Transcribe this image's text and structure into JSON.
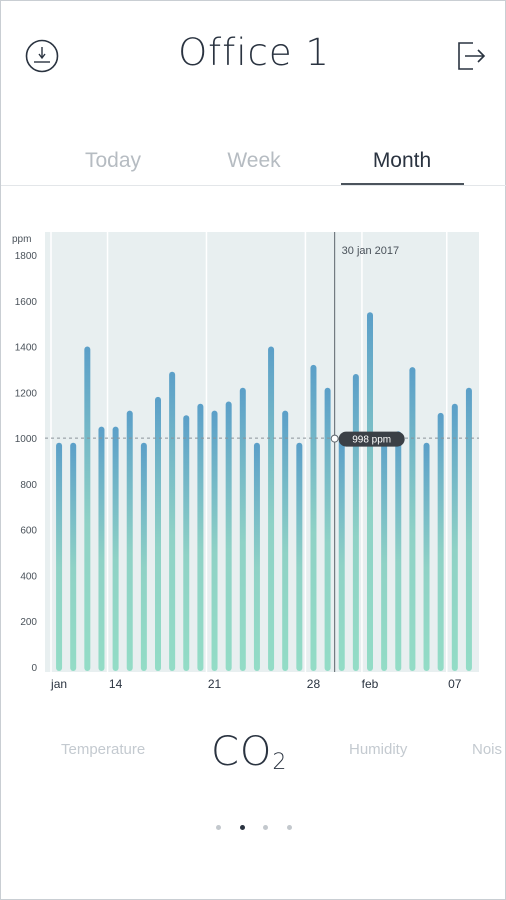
{
  "header": {
    "title": "Office 1",
    "left_icon": "gauge-icon",
    "right_icon": "logout-icon"
  },
  "tabs": [
    {
      "label": "Today",
      "active": false
    },
    {
      "label": "Week",
      "active": false
    },
    {
      "label": "Month",
      "active": true
    }
  ],
  "metrics": {
    "left": "Temperature",
    "current_main": "CO",
    "current_sub": "2",
    "right": "Humidity",
    "far_right": "Nois"
  },
  "pager": {
    "count": 4,
    "active_index": 1
  },
  "colors": {
    "bar_top": "#5b9fc8",
    "bar_bottom": "#93dcc6",
    "chart_bg": "#e8eff0",
    "text_dark": "#2a3340"
  },
  "chart_data": {
    "type": "bar",
    "ylabel": "ppm",
    "ylim": [
      0,
      1800
    ],
    "yticks": [
      0,
      200,
      400,
      600,
      800,
      1000,
      1200,
      1400,
      1600,
      1800
    ],
    "threshold": 1000,
    "x_tick_labels": [
      "jan",
      "14",
      "21",
      "28",
      "feb",
      "07"
    ],
    "x_tick_indices": [
      0,
      4,
      11,
      18,
      22,
      28
    ],
    "values": [
      980,
      980,
      1400,
      1050,
      1050,
      1120,
      980,
      1180,
      1290,
      1100,
      1150,
      1120,
      1160,
      1220,
      980,
      1400,
      1120,
      980,
      1320,
      1220,
      998,
      1280,
      1550,
      1020,
      1030,
      1310,
      980,
      1110,
      1150,
      1220
    ],
    "selected_index": 20,
    "tooltip_date": "30 jan 2017",
    "tooltip_value": "998 ppm"
  }
}
